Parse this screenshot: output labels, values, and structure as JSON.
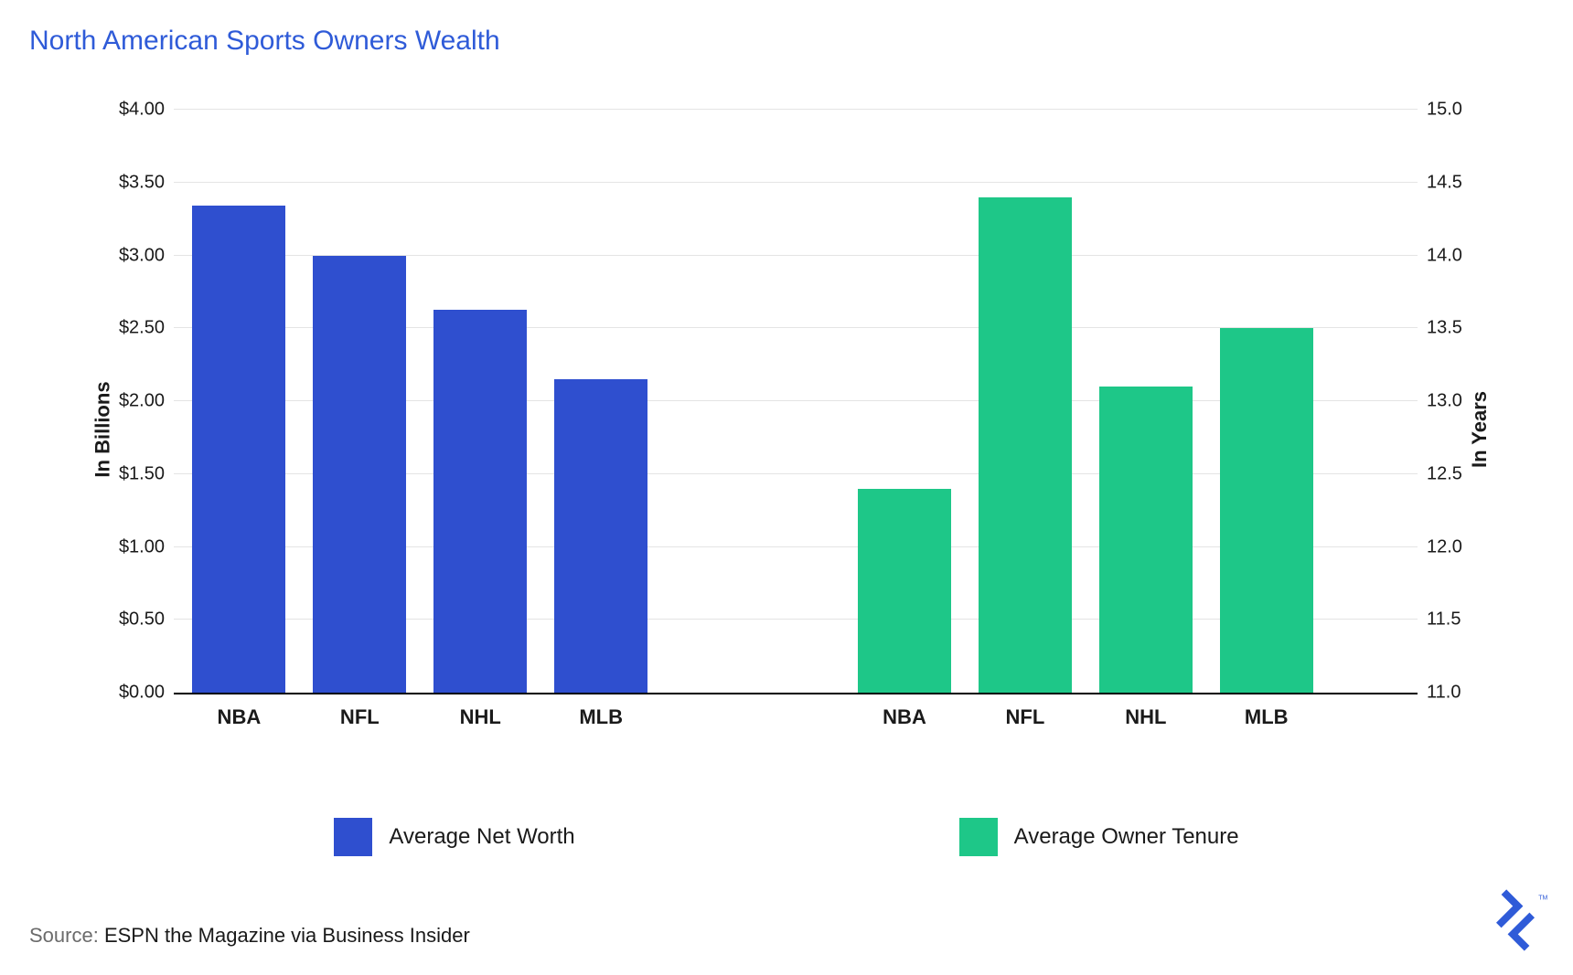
{
  "title": "North American Sports Owners Wealth",
  "title_color": "#2f5bd8",
  "title_fontsize": 30,
  "background_color": "#ffffff",
  "grid_color": "#e4e4e4",
  "axis_color": "#000000",
  "text_color": "#1a1a1a",
  "source_label": "Source:",
  "source_text": "ESPN the Magazine via Business Insider",
  "source_label_color": "#6b6b6b",
  "logo_color": "#2f5bd8",
  "logo_tm": "TM",
  "left_axis": {
    "label": "In Billions",
    "min": 0.0,
    "max": 4.0,
    "ticks": [
      0.0,
      0.5,
      1.0,
      1.5,
      2.0,
      2.5,
      3.0,
      3.5,
      4.0
    ],
    "tick_labels": [
      "$0.00",
      "$0.50",
      "$1.00",
      "$1.50",
      "$2.00",
      "$2.50",
      "$3.00",
      "$3.50",
      "$4.00"
    ],
    "label_fontsize": 22,
    "tick_fontsize": 20
  },
  "right_axis": {
    "label": "In Years",
    "min": 11.0,
    "max": 15.0,
    "ticks": [
      11.0,
      11.5,
      12.0,
      12.5,
      13.0,
      13.5,
      14.0,
      14.5,
      15.0
    ],
    "tick_labels": [
      "11.0",
      "11.5",
      "12.0",
      "12.5",
      "13.0",
      "13.5",
      "14.0",
      "14.5",
      "15.0"
    ],
    "label_fontsize": 22,
    "tick_fontsize": 20
  },
  "series": [
    {
      "name": "Average Net Worth",
      "color": "#2f4fcf",
      "axis": "left",
      "categories": [
        "NBA",
        "NFL",
        "NHL",
        "MLB"
      ],
      "values": [
        3.34,
        3.0,
        2.63,
        2.15
      ]
    },
    {
      "name": "Average Owner Tenure",
      "color": "#1ec788",
      "axis": "right",
      "categories": [
        "NBA",
        "NFL",
        "NHL",
        "MLB"
      ],
      "values": [
        12.4,
        14.4,
        13.1,
        13.5
      ]
    }
  ],
  "layout": {
    "bar_width_pct": 7.5,
    "group_gap_pct": 10.0,
    "left_group_start_pct": 1.5,
    "right_group_start_pct": 55.0,
    "intra_gap_pct": 2.2,
    "xcat_fontsize": 22,
    "legend_fontsize": 24
  }
}
